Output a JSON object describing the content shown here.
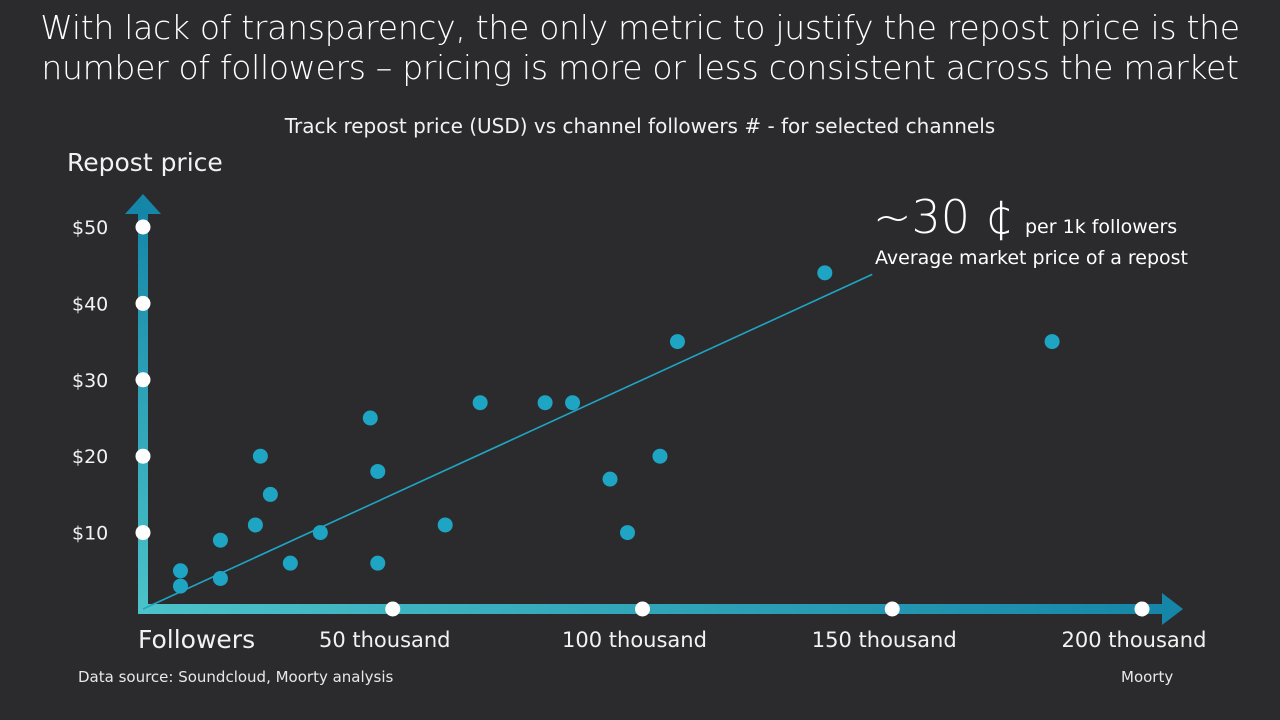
{
  "headline": {
    "line1": "With lack of transparency, the only metric to justify the repost price is the",
    "line2": "number of followers – pricing is more or less consistent across the market"
  },
  "footer": {
    "source": "Data source: Soundcloud, Moorty analysis",
    "brand": "Moorty"
  },
  "annotation": {
    "rate": "~30 ¢",
    "rate_unit": "per 1k followers",
    "caption": "Average market price of a repost"
  },
  "colors": {
    "background": "#2b2b2d",
    "accent": "#1fa5c4",
    "axis_light": "#4cc3c9",
    "axis_dark": "#1686a8",
    "text": "#ffffff"
  },
  "chart_data": {
    "type": "scatter",
    "title": "Track repost price (USD) vs channel followers # - for selected channels",
    "xlabel": "Followers",
    "ylabel": "Repost price",
    "xlim": [
      0,
      200000
    ],
    "ylim": [
      0,
      50
    ],
    "x_ticks": [
      {
        "value": 50000,
        "label": "50 thousand"
      },
      {
        "value": 100000,
        "label": "100 thousand"
      },
      {
        "value": 150000,
        "label": "150 thousand"
      },
      {
        "value": 200000,
        "label": "200 thousand"
      }
    ],
    "y_ticks": [
      {
        "value": 10,
        "label": "$10"
      },
      {
        "value": 20,
        "label": "$20"
      },
      {
        "value": 30,
        "label": "$30"
      },
      {
        "value": 40,
        "label": "$40"
      },
      {
        "value": 50,
        "label": "$50"
      }
    ],
    "trend_line": {
      "slope_usd_per_1k_followers": 0.3,
      "x_start": 0,
      "x_end": 146000
    },
    "points": [
      {
        "x": 7500,
        "y": 3
      },
      {
        "x": 7500,
        "y": 5
      },
      {
        "x": 15500,
        "y": 4
      },
      {
        "x": 15500,
        "y": 9
      },
      {
        "x": 22500,
        "y": 11
      },
      {
        "x": 23500,
        "y": 20
      },
      {
        "x": 25500,
        "y": 15
      },
      {
        "x": 29500,
        "y": 6
      },
      {
        "x": 35500,
        "y": 10
      },
      {
        "x": 45500,
        "y": 25
      },
      {
        "x": 47000,
        "y": 18
      },
      {
        "x": 47000,
        "y": 6
      },
      {
        "x": 60500,
        "y": 11
      },
      {
        "x": 67500,
        "y": 27
      },
      {
        "x": 80500,
        "y": 27
      },
      {
        "x": 86000,
        "y": 27
      },
      {
        "x": 93500,
        "y": 17
      },
      {
        "x": 97000,
        "y": 10
      },
      {
        "x": 103500,
        "y": 20
      },
      {
        "x": 107000,
        "y": 35
      },
      {
        "x": 136500,
        "y": 44
      },
      {
        "x": 182000,
        "y": 35
      }
    ]
  }
}
